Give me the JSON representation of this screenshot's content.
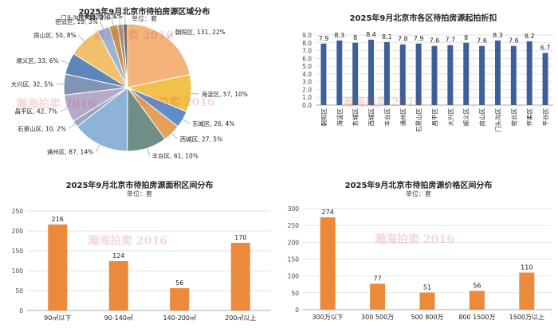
{
  "watermark": "瀚海拍卖 2016",
  "colors": {
    "bar_orange": "#ec8a3c",
    "bar_blue": "#3f5f99",
    "grid": "#d9d9d9",
    "pie": [
      "#f4b37a",
      "#f2c14c",
      "#5f8ecf",
      "#e6a05a",
      "#6f8f86",
      "#8db3d8",
      "#9aa6c0",
      "#b7a9c9",
      "#7f95b3",
      "#5e86b8",
      "#f0c06c",
      "#9cb2d6",
      "#c8924f",
      "#a88f7c",
      "#7a6f6a",
      "#c4b9a8"
    ]
  },
  "chart_data": [
    {
      "type": "pie",
      "title": "2025年9月北京市待拍房源区域分布",
      "unit": "单位：套",
      "slices": [
        {
          "label": "朝阳区",
          "value": 131,
          "pct": "22%"
        },
        {
          "label": "海淀区",
          "value": 57,
          "pct": "10%"
        },
        {
          "label": "东城区",
          "value": 26,
          "pct": "4%"
        },
        {
          "label": "西城区",
          "value": 27,
          "pct": "5%"
        },
        {
          "label": "丰台区",
          "value": 61,
          "pct": "10%"
        },
        {
          "label": "通州区",
          "value": 87,
          "pct": "14%"
        },
        {
          "label": "石景山区",
          "value": 10,
          "pct": "2%"
        },
        {
          "label": "昌平区",
          "value": 42,
          "pct": "7%"
        },
        {
          "label": "大兴区",
          "value": 32,
          "pct": "5%"
        },
        {
          "label": "顺义区",
          "value": 33,
          "pct": "6%"
        },
        {
          "label": "房山区",
          "value": 50,
          "pct": "8%"
        },
        {
          "label": "密云区",
          "value": 19,
          "pct": "3%"
        },
        {
          "label": "门头沟区",
          "value": 13,
          "pct": "2%"
        },
        {
          "label": "怀柔区",
          "value": 8,
          "pct": "1%"
        },
        {
          "label": "平谷区",
          "value": 7,
          "pct": "1%"
        }
      ]
    },
    {
      "type": "bar",
      "title": "2025年9月北京市各区待拍房源起拍折扣",
      "categories": [
        "朝阳区",
        "海淀区",
        "东城区",
        "西城区",
        "丰台区",
        "通州区",
        "石景山区",
        "昌平区",
        "大兴区",
        "顺义区",
        "房山区",
        "门头沟区",
        "密云区",
        "怀柔区",
        "平谷区"
      ],
      "values": [
        7.9,
        8.3,
        8.0,
        8.4,
        8.1,
        7.8,
        7.9,
        7.6,
        7.7,
        8.0,
        7.6,
        8.3,
        7.6,
        8.2,
        6.7
      ],
      "ylim": [
        0,
        9
      ],
      "yticks": [
        "0.0",
        "1.0",
        "2.0",
        "3.0",
        "4.0",
        "5.0",
        "6.0",
        "7.0",
        "8.0",
        "9.0"
      ]
    },
    {
      "type": "bar",
      "title": "2025年9月北京市待拍房源面积区间分布",
      "unit": "单位：套",
      "categories": [
        "90㎡以下",
        "90-140㎡",
        "140-200㎡",
        "200㎡以上"
      ],
      "values": [
        216,
        124,
        56,
        170
      ],
      "ylim": [
        0,
        250
      ],
      "yticks": [
        "0",
        "50",
        "100",
        "150",
        "200",
        "250"
      ]
    },
    {
      "type": "bar",
      "title": "2025年9月北京市待拍房源价格区间分布",
      "unit": "单位：套",
      "categories": [
        "300万以下",
        "300 500万",
        "500 800万",
        "800 1500万",
        "1500万以上"
      ],
      "values": [
        274,
        77,
        51,
        56,
        110
      ],
      "ylim": [
        0,
        300
      ],
      "yticks": [
        "0",
        "50",
        "100",
        "150",
        "200",
        "250",
        "300"
      ]
    }
  ]
}
